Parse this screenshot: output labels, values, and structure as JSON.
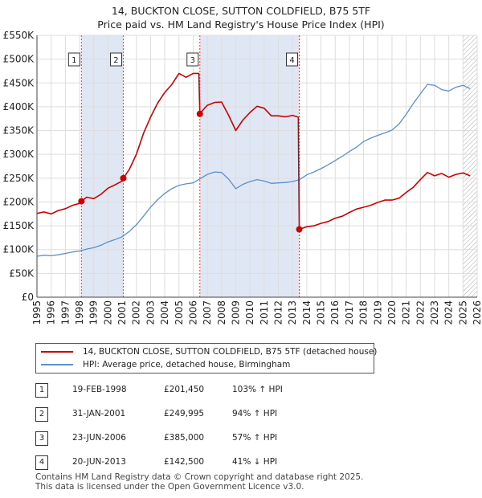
{
  "chart_data": {
    "type": "line",
    "title": "14, BUCKTON CLOSE, SUTTON COLDFIELD, B75 5TF",
    "subtitle": "Price paid vs. HM Land Registry's House Price Index (HPI)",
    "xlim": [
      1995,
      2026
    ],
    "ylim": [
      0,
      550000
    ],
    "xticks": [
      "1995",
      "1996",
      "1997",
      "1998",
      "1999",
      "2000",
      "2001",
      "2002",
      "2003",
      "2004",
      "2005",
      "2006",
      "2007",
      "2008",
      "2009",
      "2010",
      "2011",
      "2012",
      "2013",
      "2014",
      "2015",
      "2016",
      "2017",
      "2018",
      "2019",
      "2020",
      "2021",
      "2022",
      "2023",
      "2024",
      "2025",
      "2026"
    ],
    "yticks": [
      {
        "value": 0,
        "label": "£0"
      },
      {
        "value": 50000,
        "label": "£50K"
      },
      {
        "value": 100000,
        "label": "£100K"
      },
      {
        "value": 150000,
        "label": "£150K"
      },
      {
        "value": 200000,
        "label": "£200K"
      },
      {
        "value": 250000,
        "label": "£250K"
      },
      {
        "value": 300000,
        "label": "£300K"
      },
      {
        "value": 350000,
        "label": "£350K"
      },
      {
        "value": 400000,
        "label": "£400K"
      },
      {
        "value": 450000,
        "label": "£450K"
      },
      {
        "value": 500000,
        "label": "£500K"
      },
      {
        "value": 550000,
        "label": "£550K"
      }
    ],
    "colors": {
      "property": "#cc0000",
      "hpi": "#5b8fcf",
      "shade": "#dfe7f5",
      "grid": "#dddddd",
      "vline": "#dd4444",
      "hatch": "#aaaaaa"
    },
    "shaded_periods": [
      [
        1998.13,
        2001.08
      ],
      [
        2006.47,
        2013.47
      ]
    ],
    "future_from": 2025.0,
    "series": [
      {
        "name": "14, BUCKTON CLOSE, SUTTON COLDFIELD, B75 5TF (detached house)",
        "key": "property",
        "x": [
          1995.0,
          1995.5,
          1996.0,
          1996.5,
          1997.0,
          1997.5,
          1998.0,
          1998.13,
          1998.5,
          1999.0,
          1999.5,
          2000.0,
          2000.5,
          2001.0,
          2001.08,
          2001.5,
          2002.0,
          2002.5,
          2003.0,
          2003.5,
          2004.0,
          2004.5,
          2005.0,
          2005.5,
          2006.0,
          2006.4,
          2006.47,
          2006.8,
          2007.0,
          2007.5,
          2008.0,
          2008.5,
          2009.0,
          2009.5,
          2010.0,
          2010.5,
          2011.0,
          2011.5,
          2012.0,
          2012.5,
          2013.0,
          2013.4,
          2013.47,
          2014.0,
          2014.5,
          2015.0,
          2015.5,
          2016.0,
          2016.5,
          2017.0,
          2017.5,
          2018.0,
          2018.5,
          2019.0,
          2019.5,
          2020.0,
          2020.5,
          2021.0,
          2021.5,
          2022.0,
          2022.5,
          2023.0,
          2023.5,
          2024.0,
          2024.5,
          2025.0,
          2025.5
        ],
        "values": [
          176000,
          179000,
          175000,
          182000,
          186000,
          193000,
          197000,
          201450,
          210000,
          207000,
          216000,
          229000,
          236000,
          244000,
          249995,
          268000,
          300000,
          344000,
          378000,
          408000,
          430000,
          447000,
          470000,
          462000,
          470000,
          470000,
          385000,
          397000,
          403000,
          409000,
          410000,
          382000,
          350000,
          372000,
          388000,
          401000,
          397000,
          381000,
          381000,
          379000,
          382000,
          378000,
          142500,
          148000,
          150000,
          155000,
          159000,
          166000,
          170000,
          178000,
          185000,
          189000,
          193000,
          199000,
          204000,
          204000,
          208000,
          220000,
          231000,
          247000,
          262000,
          255000,
          260000,
          252000,
          258000,
          261000,
          255000
        ]
      },
      {
        "name": "HPI: Average price, detached house, Birmingham",
        "key": "hpi",
        "x": [
          1995.0,
          1995.5,
          1996.0,
          1996.5,
          1997.0,
          1997.5,
          1998.0,
          1998.5,
          1999.0,
          1999.5,
          2000.0,
          2000.5,
          2001.0,
          2001.5,
          2002.0,
          2002.5,
          2003.0,
          2003.5,
          2004.0,
          2004.5,
          2005.0,
          2005.5,
          2006.0,
          2006.5,
          2007.0,
          2007.5,
          2008.0,
          2008.5,
          2009.0,
          2009.5,
          2010.0,
          2010.5,
          2011.0,
          2011.5,
          2012.0,
          2012.5,
          2013.0,
          2013.5,
          2014.0,
          2014.5,
          2015.0,
          2015.5,
          2016.0,
          2016.5,
          2017.0,
          2017.5,
          2018.0,
          2018.5,
          2019.0,
          2019.5,
          2020.0,
          2020.5,
          2021.0,
          2021.5,
          2022.0,
          2022.5,
          2023.0,
          2023.5,
          2024.0,
          2024.5,
          2025.0,
          2025.5
        ],
        "values": [
          86000,
          88000,
          87000,
          89000,
          92000,
          95000,
          97000,
          101000,
          104000,
          109000,
          116000,
          121000,
          127000,
          138000,
          152000,
          170000,
          189000,
          205000,
          218000,
          228000,
          235000,
          238000,
          240000,
          249000,
          258000,
          263000,
          262000,
          248000,
          228000,
          237000,
          243000,
          247000,
          244000,
          239000,
          240000,
          241000,
          243000,
          247000,
          257000,
          263000,
          270000,
          278000,
          287000,
          296000,
          306000,
          315000,
          327000,
          334000,
          340000,
          345000,
          351000,
          364000,
          384000,
          407000,
          427000,
          447000,
          445000,
          436000,
          433000,
          441000,
          445000,
          438000
        ]
      }
    ],
    "sales": [
      {
        "num": "1",
        "x": 1998.13,
        "value": 201450
      },
      {
        "num": "2",
        "x": 2001.08,
        "value": 249995
      },
      {
        "num": "3",
        "x": 2006.47,
        "value": 385000
      },
      {
        "num": "4",
        "x": 2013.47,
        "value": 142500
      }
    ]
  },
  "legend": {
    "property_label": "14, BUCKTON CLOSE, SUTTON COLDFIELD, B75 5TF (detached house)",
    "hpi_label": "HPI: Average price, detached house, Birmingham"
  },
  "transactions": [
    {
      "num": "1",
      "date": "19-FEB-1998",
      "price": "£201,450",
      "hpi": "103% ↑ HPI"
    },
    {
      "num": "2",
      "date": "31-JAN-2001",
      "price": "£249,995",
      "hpi": "94% ↑ HPI"
    },
    {
      "num": "3",
      "date": "23-JUN-2006",
      "price": "£385,000",
      "hpi": "57% ↑ HPI"
    },
    {
      "num": "4",
      "date": "20-JUN-2013",
      "price": "£142,500",
      "hpi": "41% ↓ HPI"
    }
  ],
  "footer": {
    "line1": "Contains HM Land Registry data © Crown copyright and database right 2025.",
    "line2": "This data is licensed under the Open Government Licence v3.0."
  }
}
